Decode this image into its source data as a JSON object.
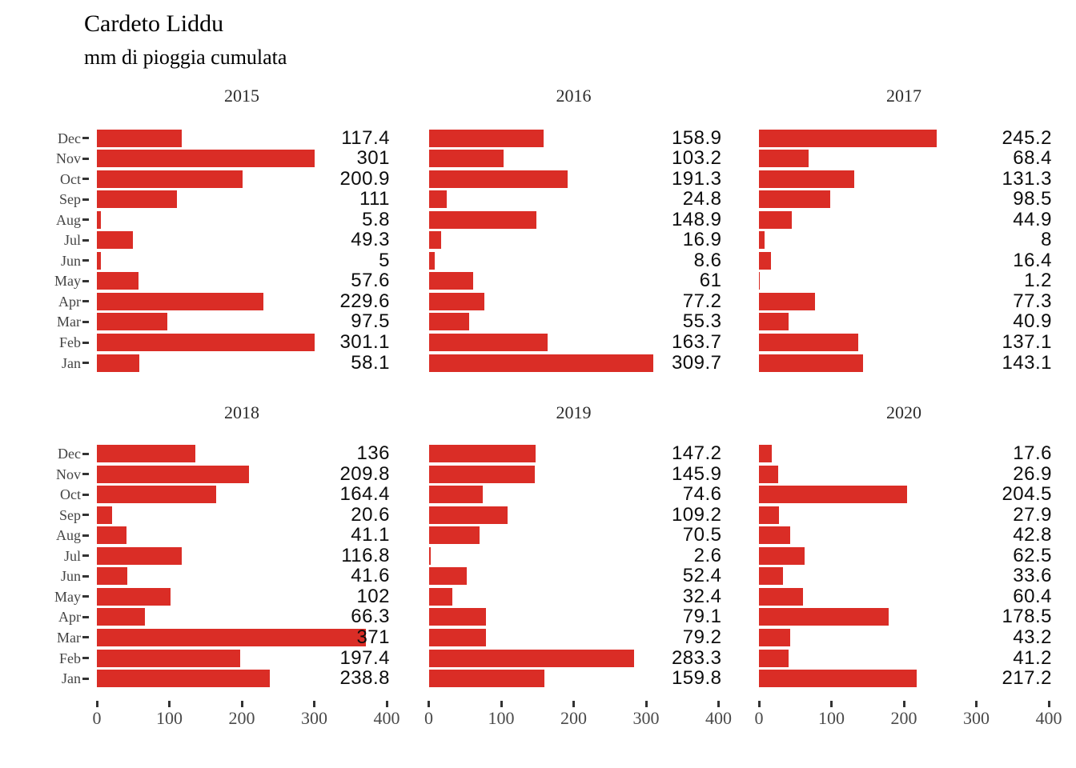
{
  "header": {
    "title": "Cardeto Liddu",
    "subtitle": "mm di pioggia cumulata"
  },
  "chart_data": {
    "type": "bar",
    "orientation": "horizontal",
    "title": "Cardeto Liddu",
    "subtitle": "mm di pioggia cumulata",
    "unit": "mm",
    "categories": [
      "Dec",
      "Nov",
      "Oct",
      "Sep",
      "Aug",
      "Jul",
      "Jun",
      "May",
      "Apr",
      "Mar",
      "Feb",
      "Jan"
    ],
    "x_ticks": [
      0,
      100,
      200,
      300,
      400
    ],
    "xlim": [
      0,
      400
    ],
    "grid": false,
    "legend": "none",
    "bar_color": "#da2d26",
    "series": [
      {
        "name": "2015",
        "values": [
          117.4,
          301,
          200.9,
          111,
          5.8,
          49.3,
          5,
          57.6,
          229.6,
          97.5,
          301.1,
          58.1
        ]
      },
      {
        "name": "2016",
        "values": [
          158.9,
          103.2,
          191.3,
          24.8,
          148.9,
          16.9,
          8.6,
          61,
          77.2,
          55.3,
          163.7,
          309.7
        ]
      },
      {
        "name": "2017",
        "values": [
          245.2,
          68.4,
          131.3,
          98.5,
          44.9,
          8,
          16.4,
          1.2,
          77.3,
          40.9,
          137.1,
          143.1
        ]
      },
      {
        "name": "2018",
        "values": [
          136,
          209.8,
          164.4,
          20.6,
          41.1,
          116.8,
          41.6,
          102,
          66.3,
          371,
          197.4,
          238.8
        ]
      },
      {
        "name": "2019",
        "values": [
          147.2,
          145.9,
          74.6,
          109.2,
          70.5,
          2.6,
          52.4,
          32.4,
          79.1,
          79.2,
          283.3,
          159.8
        ]
      },
      {
        "name": "2020",
        "values": [
          17.6,
          26.9,
          204.5,
          27.9,
          42.8,
          62.5,
          33.6,
          60.4,
          178.5,
          43.2,
          41.2,
          217.2
        ]
      }
    ]
  }
}
